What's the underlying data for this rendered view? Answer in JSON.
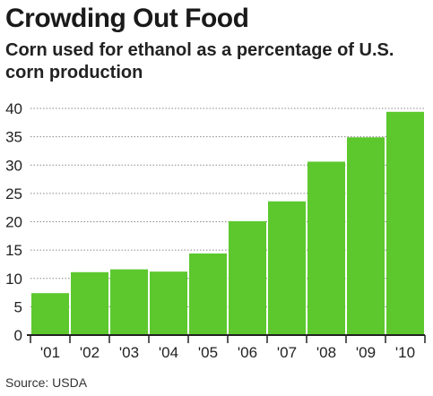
{
  "title": "Crowding Out Food",
  "subtitle": "Corn used for ethanol as a percentage of U.S. corn production",
  "source": "Source: USDA",
  "colors": {
    "bar": "#5cc82e",
    "bar_edge": "#ffffff",
    "grid": "#8a8a8a",
    "axis": "#222222"
  },
  "chart_data": {
    "type": "bar",
    "title": "Crowding Out Food",
    "subtitle": "Corn used for ethanol as a percentage of U.S. corn production",
    "categories": [
      "'01",
      "'02",
      "'03",
      "'04",
      "'05",
      "'06",
      "'07",
      "'08",
      "'09",
      "'10"
    ],
    "values": [
      7.4,
      11.1,
      11.6,
      11.2,
      14.4,
      20.1,
      23.6,
      30.6,
      34.9,
      39.4
    ],
    "ylim": [
      0,
      40
    ],
    "yticks": [
      0,
      5,
      10,
      15,
      20,
      25,
      30,
      35,
      40
    ],
    "xlabel": "",
    "ylabel": "",
    "grid": "horizontal dotted",
    "legend": "none"
  }
}
